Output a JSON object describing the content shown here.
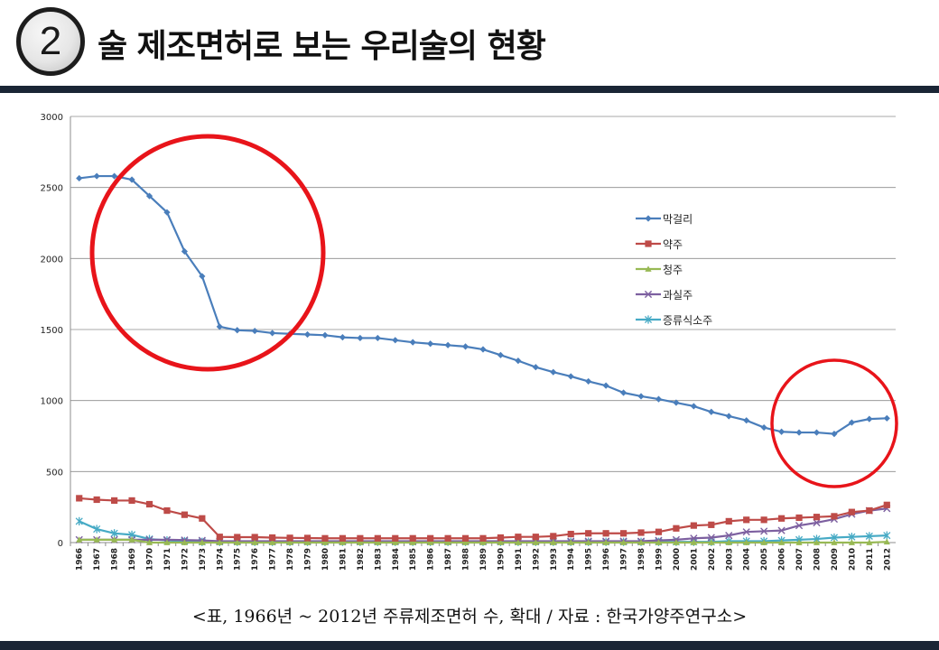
{
  "header": {
    "badge_number": "2",
    "title": "술 제조면허로 보는 우리술의 현황"
  },
  "caption": "<표, 1966년 ~ 2012년 주류제조면허 수, 확대 / 자료 : 한국가양주연구소>",
  "colors": {
    "header_bar": "#1a2535",
    "highlight_circle": "#e8141a"
  },
  "chart_data": {
    "type": "line",
    "title": "",
    "xlabel": "",
    "ylabel": "",
    "ylim": [
      0,
      3000
    ],
    "yticks": [
      "0",
      "500",
      "1000",
      "1500",
      "2000",
      "2500",
      "3000"
    ],
    "grid": true,
    "legend_position": "right",
    "x": [
      "1966",
      "1967",
      "1968",
      "1969",
      "1970",
      "1971",
      "1972",
      "1973",
      "1974",
      "1975",
      "1976",
      "1977",
      "1978",
      "1979",
      "1980",
      "1981",
      "1982",
      "1983",
      "1984",
      "1985",
      "1986",
      "1987",
      "1988",
      "1989",
      "1990",
      "1991",
      "1992",
      "1993",
      "1994",
      "1995",
      "1996",
      "1997",
      "1998",
      "1999",
      "2000",
      "2001",
      "2002",
      "2003",
      "2004",
      "2005",
      "2006",
      "2007",
      "2008",
      "2009",
      "2010",
      "2011",
      "2012"
    ],
    "series": [
      {
        "name": "막걸리",
        "color": "#4a7ebb",
        "marker": "diamond",
        "values": [
          2565,
          2580,
          2580,
          2555,
          2440,
          2325,
          2050,
          1875,
          1520,
          1495,
          1490,
          1475,
          1470,
          1465,
          1460,
          1445,
          1440,
          1440,
          1425,
          1410,
          1400,
          1390,
          1380,
          1360,
          1320,
          1280,
          1235,
          1200,
          1170,
          1135,
          1105,
          1055,
          1030,
          1010,
          985,
          960,
          920,
          890,
          860,
          810,
          780,
          775,
          775,
          765,
          845,
          870,
          875
        ]
      },
      {
        "name": "약주",
        "color": "#be4b48",
        "marker": "square",
        "values": [
          312,
          302,
          296,
          296,
          270,
          225,
          196,
          170,
          40,
          38,
          38,
          35,
          33,
          32,
          30,
          30,
          30,
          30,
          30,
          30,
          30,
          30,
          30,
          30,
          35,
          40,
          40,
          45,
          60,
          65,
          65,
          65,
          70,
          75,
          100,
          120,
          125,
          150,
          160,
          160,
          170,
          175,
          180,
          185,
          215,
          225,
          265
        ]
      },
      {
        "name": "청주",
        "color": "#98b954",
        "marker": "triangle",
        "values": [
          20,
          20,
          20,
          20,
          0,
          0,
          0,
          0,
          0,
          0,
          0,
          0,
          0,
          0,
          0,
          0,
          0,
          0,
          0,
          0,
          0,
          0,
          0,
          0,
          0,
          0,
          0,
          0,
          0,
          0,
          0,
          0,
          0,
          0,
          0,
          0,
          0,
          0,
          0,
          0,
          0,
          0,
          0,
          0,
          0,
          0,
          5
        ]
      },
      {
        "name": "과실주",
        "color": "#7d60a0",
        "marker": "x",
        "values": [
          20,
          20,
          20,
          20,
          20,
          20,
          18,
          15,
          10,
          10,
          10,
          10,
          10,
          10,
          10,
          10,
          10,
          10,
          10,
          10,
          10,
          10,
          10,
          10,
          10,
          10,
          10,
          10,
          10,
          10,
          10,
          10,
          10,
          15,
          20,
          30,
          35,
          50,
          75,
          80,
          85,
          120,
          140,
          165,
          200,
          225,
          240
        ]
      },
      {
        "name": "증류식소주",
        "color": "#46aac5",
        "marker": "asterisk",
        "values": [
          150,
          95,
          65,
          55,
          25,
          15,
          10,
          5,
          5,
          5,
          5,
          5,
          5,
          5,
          5,
          5,
          5,
          5,
          5,
          5,
          5,
          5,
          5,
          5,
          5,
          5,
          5,
          5,
          5,
          5,
          5,
          5,
          5,
          5,
          5,
          5,
          5,
          10,
          10,
          10,
          15,
          20,
          25,
          35,
          40,
          45,
          50
        ]
      }
    ]
  }
}
